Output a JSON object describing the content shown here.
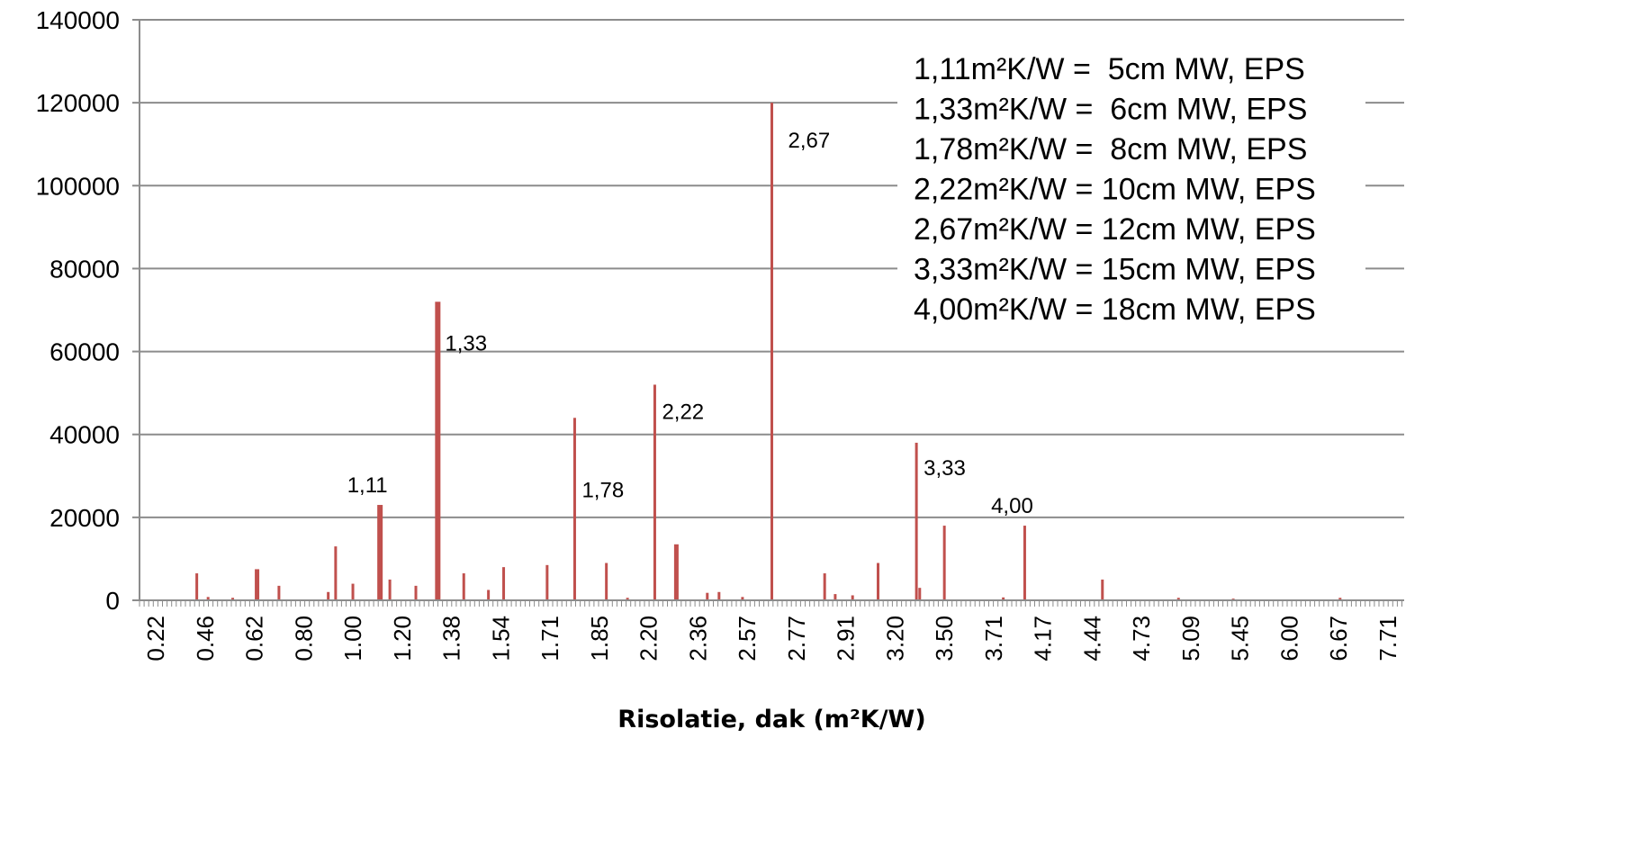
{
  "chart_data": {
    "type": "bar",
    "title": "",
    "xlabel": "Risolatie, dak (m²K/W)",
    "ylabel": "",
    "ylim": [
      0,
      140000
    ],
    "yticks": [
      "0",
      "20000",
      "40000",
      "60000",
      "80000",
      "100000",
      "120000",
      "140000"
    ],
    "grid": "horizontal",
    "bar_color": "#c0504d",
    "x_tick_labels": [
      "0.22",
      "0.46",
      "0.62",
      "0.80",
      "1.00",
      "1.20",
      "1.38",
      "1.54",
      "1.71",
      "1.85",
      "2.20",
      "2.36",
      "2.57",
      "2.77",
      "2.91",
      "3.20",
      "3.50",
      "3.71",
      "4.17",
      "4.44",
      "4.73",
      "5.09",
      "5.45",
      "6.00",
      "6.67",
      "7.71"
    ],
    "bars": [
      {
        "x": 0.42,
        "value": 6500
      },
      {
        "x": 0.47,
        "value": 800
      },
      {
        "x": 0.55,
        "value": 600
      },
      {
        "x": 0.63,
        "value": 7500
      },
      {
        "x": 0.71,
        "value": 3500
      },
      {
        "x": 0.9,
        "value": 2000
      },
      {
        "x": 0.93,
        "value": 13000
      },
      {
        "x": 1.0,
        "value": 4000
      },
      {
        "x": 1.11,
        "value": 23000,
        "label": "1,11"
      },
      {
        "x": 1.15,
        "value": 5000
      },
      {
        "x": 1.25,
        "value": 3500
      },
      {
        "x": 1.33,
        "value": 72000,
        "label": "1,33"
      },
      {
        "x": 1.42,
        "value": 6500
      },
      {
        "x": 1.5,
        "value": 2500
      },
      {
        "x": 1.55,
        "value": 8000
      },
      {
        "x": 1.7,
        "value": 8500
      },
      {
        "x": 1.78,
        "value": 44000,
        "label": "1,78"
      },
      {
        "x": 1.9,
        "value": 9000
      },
      {
        "x": 2.05,
        "value": 600
      },
      {
        "x": 2.22,
        "value": 52000,
        "label": "2,22"
      },
      {
        "x": 2.29,
        "value": 13500
      },
      {
        "x": 2.4,
        "value": 1800
      },
      {
        "x": 2.45,
        "value": 2000
      },
      {
        "x": 2.55,
        "value": 800
      },
      {
        "x": 2.67,
        "value": 120000,
        "label": "2,67"
      },
      {
        "x": 2.85,
        "value": 6500
      },
      {
        "x": 2.88,
        "value": 1500
      },
      {
        "x": 2.95,
        "value": 1200
      },
      {
        "x": 3.1,
        "value": 9000
      },
      {
        "x": 3.33,
        "value": 38000,
        "label": "3,33"
      },
      {
        "x": 3.35,
        "value": 3000
      },
      {
        "x": 3.5,
        "value": 18000
      },
      {
        "x": 3.8,
        "value": 700
      },
      {
        "x": 4.0,
        "value": 18000,
        "label": "4,00"
      },
      {
        "x": 4.5,
        "value": 5000
      },
      {
        "x": 5.0,
        "value": 600
      },
      {
        "x": 5.4,
        "value": 400
      },
      {
        "x": 6.7,
        "value": 600
      }
    ],
    "legend": {
      "position": "top-right",
      "lines": [
        "1,11m²K/W =  5cm MW, EPS",
        "1,33m²K/W =  6cm MW, EPS",
        "1,78m²K/W =  8cm MW, EPS",
        "2,22m²K/W = 10cm MW, EPS",
        "2,67m²K/W = 12cm MW, EPS",
        "3,33m²K/W = 15cm MW, EPS",
        "4,00m²K/W = 18cm MW, EPS"
      ]
    }
  }
}
